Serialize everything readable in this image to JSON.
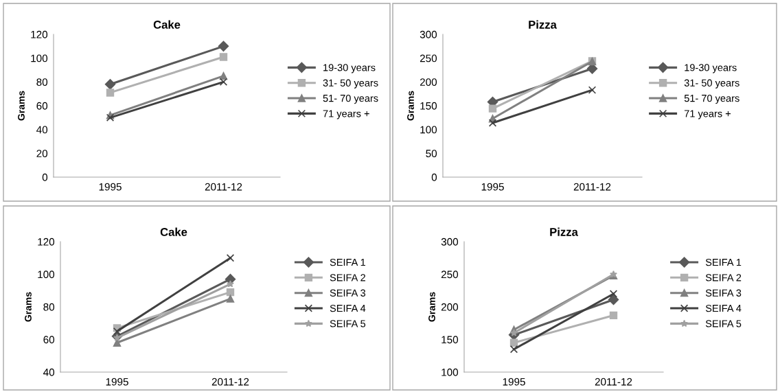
{
  "chart_data": [
    {
      "type": "line",
      "title": "Cake",
      "ylabel": "Grams",
      "categories": [
        "1995",
        "2011-12"
      ],
      "ylim": [
        0,
        120
      ],
      "yticks": [
        0,
        20,
        40,
        60,
        80,
        100,
        120
      ],
      "grid": false,
      "legend": "right",
      "series": [
        {
          "name": "19-30 years",
          "color": "#595959",
          "marker": "diamond",
          "values": [
            78,
            110
          ]
        },
        {
          "name": "31- 50 years",
          "color": "#b0b0b0",
          "marker": "square",
          "values": [
            71,
            101
          ]
        },
        {
          "name": "51- 70 years",
          "color": "#808080",
          "marker": "triangle",
          "values": [
            52,
            85
          ]
        },
        {
          "name": "71 years +",
          "color": "#404040",
          "marker": "cross",
          "values": [
            50,
            80
          ]
        }
      ]
    },
    {
      "type": "line",
      "title": "Pizza",
      "ylabel": "Grams",
      "categories": [
        "1995",
        "2011-12"
      ],
      "ylim": [
        0,
        300
      ],
      "yticks": [
        0,
        50,
        100,
        150,
        200,
        250,
        300
      ],
      "grid": false,
      "legend": "right",
      "series": [
        {
          "name": "19-30 years",
          "color": "#595959",
          "marker": "diamond",
          "values": [
            158,
            228
          ]
        },
        {
          "name": "31- 50 years",
          "color": "#b0b0b0",
          "marker": "square",
          "values": [
            144,
            244
          ]
        },
        {
          "name": "51- 70 years",
          "color": "#808080",
          "marker": "triangle",
          "values": [
            123,
            243
          ]
        },
        {
          "name": "71 years +",
          "color": "#404040",
          "marker": "cross",
          "values": [
            114,
            183
          ]
        }
      ]
    },
    {
      "type": "line",
      "title": "Cake",
      "ylabel": "Grams",
      "categories": [
        "1995",
        "2011-12"
      ],
      "ylim": [
        40,
        120
      ],
      "yticks": [
        40,
        60,
        80,
        100,
        120
      ],
      "grid": false,
      "legend": "right",
      "series": [
        {
          "name": "SEIFA 1",
          "color": "#595959",
          "marker": "diamond",
          "values": [
            62,
            97
          ]
        },
        {
          "name": "SEIFA 2",
          "color": "#b0b0b0",
          "marker": "square",
          "values": [
            67,
            89
          ]
        },
        {
          "name": "SEIFA 3",
          "color": "#808080",
          "marker": "triangle",
          "values": [
            58,
            85
          ]
        },
        {
          "name": "SEIFA 4",
          "color": "#404040",
          "marker": "cross",
          "values": [
            65,
            110
          ]
        },
        {
          "name": "SEIFA 5",
          "color": "#a0a0a0",
          "marker": "star",
          "values": [
            61,
            94
          ]
        }
      ]
    },
    {
      "type": "line",
      "title": "Pizza",
      "ylabel": "Grams",
      "categories": [
        "1995",
        "2011-12"
      ],
      "ylim": [
        100,
        300
      ],
      "yticks": [
        100,
        150,
        200,
        250,
        300
      ],
      "grid": false,
      "legend": "right",
      "series": [
        {
          "name": "SEIFA 1",
          "color": "#595959",
          "marker": "diamond",
          "values": [
            157,
            211
          ]
        },
        {
          "name": "SEIFA 2",
          "color": "#b0b0b0",
          "marker": "square",
          "values": [
            145,
            187
          ]
        },
        {
          "name": "SEIFA 3",
          "color": "#808080",
          "marker": "triangle",
          "values": [
            165,
            248
          ]
        },
        {
          "name": "SEIFA 4",
          "color": "#404040",
          "marker": "cross",
          "values": [
            135,
            220
          ]
        },
        {
          "name": "SEIFA 5",
          "color": "#a0a0a0",
          "marker": "star",
          "values": [
            160,
            250
          ]
        }
      ]
    }
  ]
}
